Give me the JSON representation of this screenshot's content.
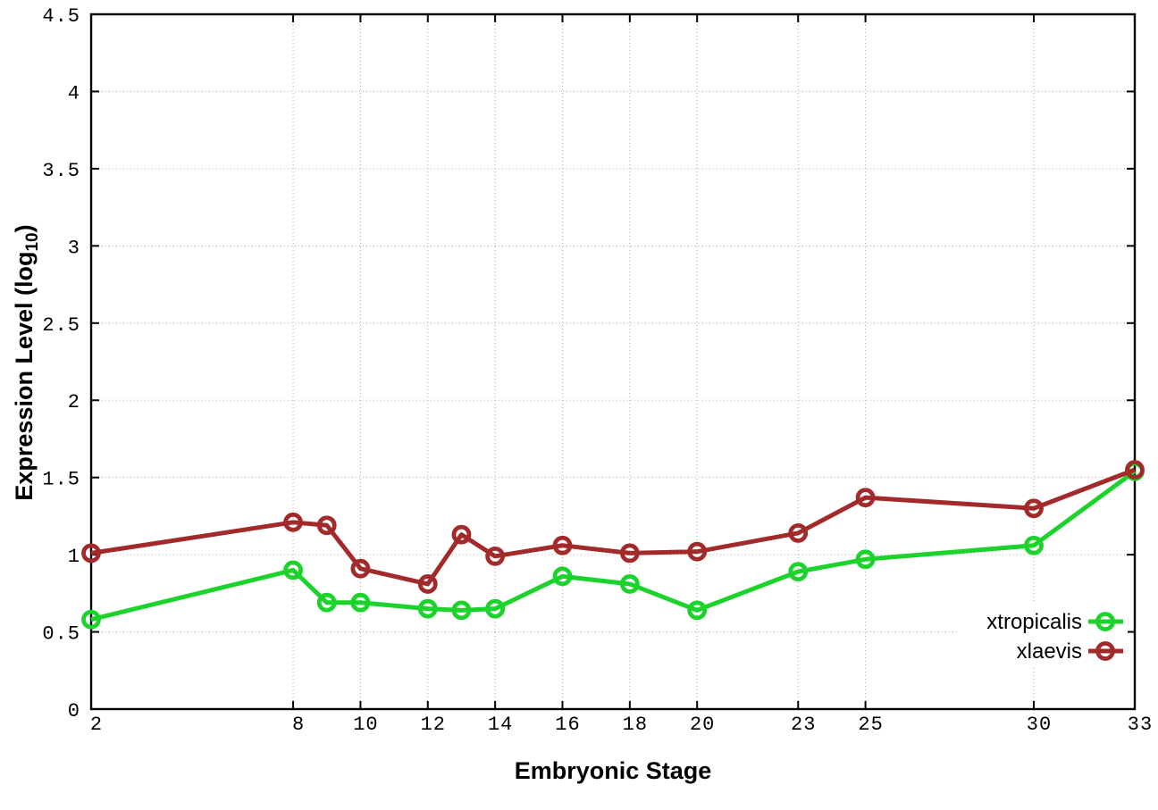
{
  "figure": {
    "background": "#ffffff",
    "text_color": "#000000",
    "grid_color": "#ababab"
  },
  "chart_data": {
    "type": "line",
    "xlabel": "Embryonic Stage",
    "ylabel": "Expression Level (log10)",
    "ylabel_parts": {
      "pre": "Expression Level (log",
      "sub": "10",
      "post": ")"
    },
    "x": [
      2,
      8,
      9,
      10,
      12,
      13,
      14,
      16,
      18,
      20,
      23,
      25,
      30,
      33
    ],
    "series": [
      {
        "name": "xtropicalis",
        "color": "#1cd32c",
        "marker": "open-circle",
        "values": [
          0.58,
          0.9,
          0.69,
          0.69,
          0.65,
          0.64,
          0.65,
          0.86,
          0.81,
          0.64,
          0.89,
          0.97,
          1.06,
          1.54
        ]
      },
      {
        "name": "xlaevis",
        "color": "#a32a2a",
        "marker": "open-circle",
        "values": [
          1.01,
          1.21,
          1.19,
          0.91,
          0.81,
          1.13,
          0.99,
          1.06,
          1.01,
          1.02,
          1.14,
          1.37,
          1.3,
          1.55
        ]
      }
    ],
    "xlim": [
      2,
      33
    ],
    "ylim": [
      0,
      4.5
    ],
    "x_ticks": [
      2,
      8,
      10,
      12,
      14,
      16,
      18,
      20,
      23,
      25,
      30,
      33
    ],
    "x_tick_labels": [
      "2",
      "8",
      "10",
      "12",
      "14",
      "16",
      "18",
      "20",
      "23",
      "25",
      "30",
      "33"
    ],
    "y_ticks": [
      0,
      0.5,
      1,
      1.5,
      2,
      2.5,
      3,
      3.5,
      4,
      4.5
    ],
    "y_tick_labels": [
      "0",
      "0.5",
      "1",
      "1.5",
      "2",
      "2.5",
      "3",
      "3.5",
      "4",
      "4.5"
    ],
    "grid": true,
    "legend_position": "inside-bottom-right",
    "legend_opaque": true
  }
}
